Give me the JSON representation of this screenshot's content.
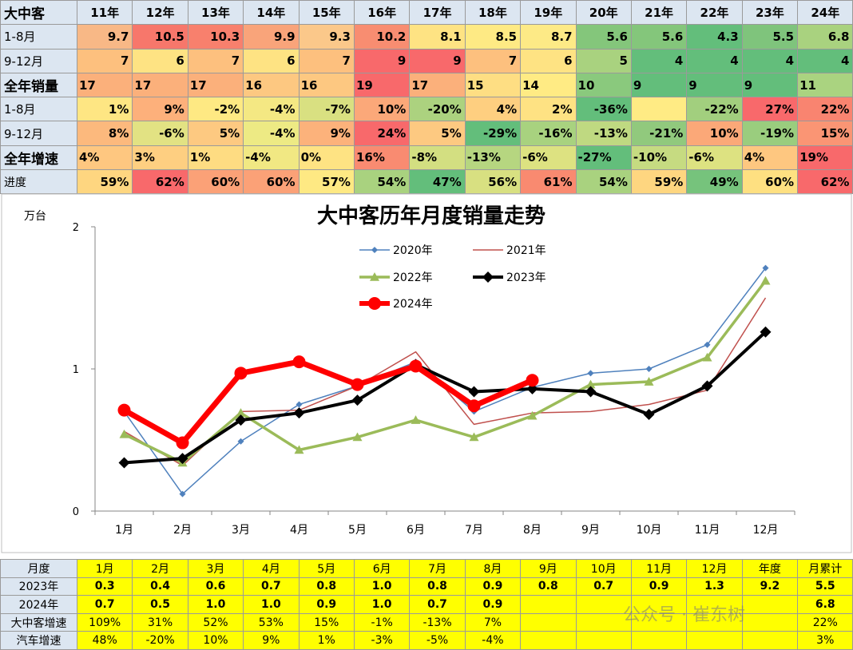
{
  "top_table": {
    "header": [
      "大中客",
      "11年",
      "12年",
      "13年",
      "14年",
      "15年",
      "16年",
      "17年",
      "18年",
      "19年",
      "20年",
      "21年",
      "22年",
      "23年",
      "24年"
    ],
    "rows": [
      {
        "label": "1-8月",
        "align": "r",
        "cells": [
          "9.7",
          "10.5",
          "10.3",
          "9.9",
          "9.3",
          "10.2",
          "8.1",
          "8.5",
          "8.7",
          "5.6",
          "5.6",
          "4.3",
          "5.5",
          "6.8"
        ],
        "colors": [
          "#f8b886",
          "#f7776b",
          "#f8806d",
          "#f9a47a",
          "#fbc88a",
          "#f88d71",
          "#fee383",
          "#feea84",
          "#fdea86",
          "#84c67b",
          "#84c67b",
          "#63be7b",
          "#7fc47c",
          "#a9d27f"
        ]
      },
      {
        "label": "9-12月",
        "align": "r",
        "cells": [
          "7",
          "6",
          "7",
          "6",
          "7",
          "9",
          "9",
          "7",
          "6",
          "5",
          "4",
          "4",
          "4",
          "4"
        ],
        "colors": [
          "#fdc07e",
          "#fee383",
          "#fdc07e",
          "#fee383",
          "#fdc07e",
          "#f8696b",
          "#f8696b",
          "#fdc07e",
          "#fee383",
          "#a9d27f",
          "#63be7b",
          "#63be7b",
          "#63be7b",
          "#63be7b"
        ]
      },
      {
        "label": "全年销量",
        "align": "l",
        "big": true,
        "cells": [
          "17",
          "17",
          "17",
          "16",
          "16",
          "19",
          "17",
          "15",
          "14",
          "10",
          "9",
          "9",
          "9",
          "11"
        ],
        "colors": [
          "#fbb07b",
          "#fbb07b",
          "#fbb07b",
          "#fdc881",
          "#fdc881",
          "#f8696b",
          "#fbb07b",
          "#fede83",
          "#ffeb84",
          "#8ac97d",
          "#63be7b",
          "#63be7b",
          "#63be7b",
          "#aad380"
        ]
      },
      {
        "label": "1-8月",
        "align": "r",
        "cells": [
          "1%",
          "9%",
          "-2%",
          "-4%",
          "-7%",
          "10%",
          "-20%",
          "4%",
          "2%",
          "-36%",
          "",
          "-22%",
          "27%",
          "22%"
        ],
        "colors": [
          "#fee683",
          "#fdb07b",
          "#fee983",
          "#f4e883",
          "#d9e081",
          "#fba879",
          "#acd27f",
          "#fecf80",
          "#fee283",
          "#63be7b",
          "#ffeb84",
          "#a2cf7e",
          "#f8696b",
          "#f98470"
        ]
      },
      {
        "label": "9-12月",
        "align": "r",
        "cells": [
          "8%",
          "-6%",
          "5%",
          "-4%",
          "9%",
          "24%",
          "5%",
          "-29%",
          "-16%",
          "-13%",
          "-21%",
          "10%",
          "-19%",
          "15%"
        ],
        "colors": [
          "#fcb97d",
          "#e2e283",
          "#fdc981",
          "#edea84",
          "#fcb27b",
          "#f8696b",
          "#fdc981",
          "#63be7b",
          "#a8d27f",
          "#bfd981",
          "#91c97d",
          "#fba878",
          "#9acd7e",
          "#fa9574"
        ]
      },
      {
        "label": "全年增速",
        "align": "l",
        "big": true,
        "cells": [
          "4%",
          "3%",
          "1%",
          "-4%",
          "0%",
          "16%",
          "-8%",
          "-13%",
          "-6%",
          "-27%",
          "-10%",
          "-6%",
          "4%",
          "19%"
        ],
        "colors": [
          "#fec780",
          "#fecf81",
          "#fedc82",
          "#f1e883",
          "#fee383",
          "#f98b71",
          "#d3df81",
          "#b6d680",
          "#dde281",
          "#63be7b",
          "#c6db81",
          "#dde281",
          "#fec780",
          "#f8696b"
        ]
      },
      {
        "label": "进度",
        "align": "r",
        "sm": true,
        "cells": [
          "59%",
          "62%",
          "60%",
          "60%",
          "57%",
          "54%",
          "47%",
          "56%",
          "61%",
          "54%",
          "59%",
          "49%",
          "60%",
          "62%"
        ],
        "colors": [
          "#fed680",
          "#f8696b",
          "#fba177",
          "#fba177",
          "#fee983",
          "#a9d27f",
          "#63be7b",
          "#d8e081",
          "#f98a70",
          "#a9d27f",
          "#fed680",
          "#76c37c",
          "#fee081",
          "#f8696b"
        ]
      }
    ]
  },
  "chart_data": {
    "type": "line",
    "title": "大中客历年月度销量走势",
    "ylabel": "万台",
    "ylim": [
      0,
      2
    ],
    "yticks": [
      "0",
      "1",
      "2"
    ],
    "categories": [
      "1月",
      "2月",
      "3月",
      "4月",
      "5月",
      "6月",
      "7月",
      "8月",
      "9月",
      "10月",
      "11月",
      "12月"
    ],
    "series": [
      {
        "name": "2020年",
        "color": "#4f81bd",
        "width": 1.5,
        "marker": "diamond",
        "msize": 4,
        "values": [
          0.7,
          0.12,
          0.49,
          0.75,
          0.88,
          1.05,
          0.7,
          0.87,
          0.97,
          1.0,
          1.17,
          1.71
        ]
      },
      {
        "name": "2021年",
        "color": "#c0504d",
        "width": 1.5,
        "marker": "none",
        "msize": 0,
        "values": [
          0.56,
          0.32,
          0.7,
          0.71,
          0.88,
          1.12,
          0.61,
          0.69,
          0.7,
          0.75,
          0.85,
          1.5
        ]
      },
      {
        "name": "2022年",
        "color": "#9bbb59",
        "width": 3.5,
        "marker": "triangle",
        "msize": 6,
        "values": [
          0.54,
          0.34,
          0.69,
          0.43,
          0.52,
          0.64,
          0.52,
          0.67,
          0.89,
          0.91,
          1.08,
          1.62
        ]
      },
      {
        "name": "2023年",
        "color": "#000000",
        "width": 4,
        "marker": "diamond",
        "msize": 7,
        "values": [
          0.34,
          0.37,
          0.64,
          0.69,
          0.78,
          1.03,
          0.84,
          0.86,
          0.84,
          0.68,
          0.88,
          1.26
        ]
      },
      {
        "name": "2024年",
        "color": "#ff0000",
        "width": 7,
        "marker": "circle",
        "msize": 8,
        "values": [
          0.71,
          0.48,
          0.97,
          1.05,
          0.89,
          1.02,
          0.74,
          0.92,
          null,
          null,
          null,
          null
        ]
      }
    ],
    "legend_position": "top-center"
  },
  "bottom_table": {
    "header": [
      "月度",
      "1月",
      "2月",
      "3月",
      "4月",
      "5月",
      "6月",
      "7月",
      "8月",
      "9月",
      "10月",
      "11月",
      "12月",
      "年度",
      "月累计"
    ],
    "rows": [
      {
        "label": "2023年",
        "bold": true,
        "cells": [
          "0.3",
          "0.4",
          "0.6",
          "0.7",
          "0.8",
          "1.0",
          "0.8",
          "0.9",
          "0.8",
          "0.7",
          "0.9",
          "1.3",
          "9.2",
          "5.5"
        ]
      },
      {
        "label": "2024年",
        "bold": true,
        "cells": [
          "0.7",
          "0.5",
          "1.0",
          "1.0",
          "0.9",
          "1.0",
          "0.7",
          "0.9",
          "",
          "",
          "",
          "",
          "",
          "6.8"
        ]
      },
      {
        "label": "大中客增速",
        "bold": false,
        "cells": [
          "109%",
          "31%",
          "52%",
          "53%",
          "15%",
          "-1%",
          "-13%",
          "7%",
          "",
          "",
          "",
          "",
          "",
          "22%"
        ]
      },
      {
        "label": "汽车增速",
        "bold": false,
        "cells": [
          "48%",
          "-20%",
          "10%",
          "9%",
          "1%",
          "-3%",
          "-5%",
          "-4%",
          "",
          "",
          "",
          "",
          "",
          "3%"
        ]
      }
    ]
  },
  "watermark": "公众号 · 崔东树"
}
